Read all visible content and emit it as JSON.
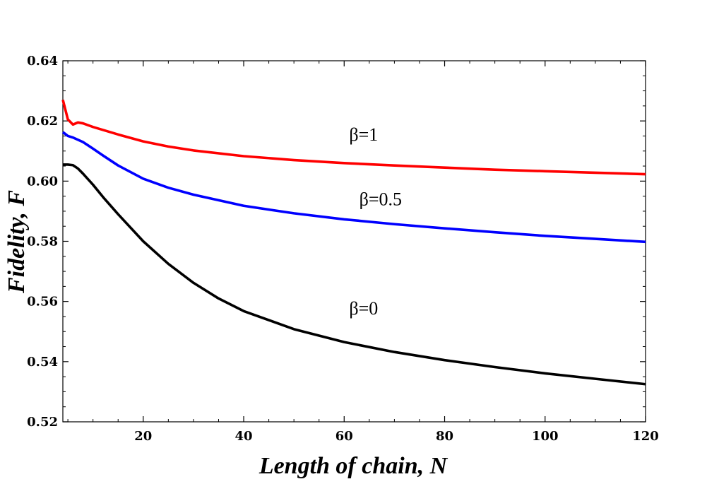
{
  "chart_data": {
    "type": "line",
    "title": "",
    "xlabel": "Length of chain, N",
    "ylabel": "Fidelity, F",
    "xlim": [
      4,
      120
    ],
    "ylim": [
      0.52,
      0.64
    ],
    "x_ticks": [
      20,
      40,
      60,
      80,
      100,
      120
    ],
    "y_ticks": [
      0.52,
      0.54,
      0.56,
      0.58,
      0.6,
      0.62,
      0.64
    ],
    "y_tick_labels": [
      "0.52",
      "0.54",
      "0.56",
      "0.58",
      "0.60",
      "0.62",
      "0.64"
    ],
    "grid": false,
    "series": [
      {
        "name": "β=1",
        "color": "#ff0000",
        "x": [
          4,
          5,
          6,
          7,
          8,
          10,
          12,
          15,
          20,
          25,
          30,
          40,
          50,
          60,
          70,
          80,
          90,
          100,
          110,
          120
        ],
        "y": [
          0.627,
          0.6205,
          0.6188,
          0.6195,
          0.6192,
          0.618,
          0.617,
          0.6155,
          0.6132,
          0.6115,
          0.6102,
          0.6083,
          0.607,
          0.606,
          0.6052,
          0.6045,
          0.6038,
          0.6033,
          0.6028,
          0.6023
        ]
      },
      {
        "name": "β=0.5",
        "color": "#0000ff",
        "x": [
          4,
          5,
          6,
          8,
          10,
          12,
          15,
          20,
          25,
          30,
          40,
          50,
          60,
          70,
          80,
          90,
          100,
          110,
          120
        ],
        "y": [
          0.6163,
          0.615,
          0.6145,
          0.613,
          0.6108,
          0.6085,
          0.6052,
          0.6008,
          0.5978,
          0.5955,
          0.5918,
          0.5893,
          0.5873,
          0.5857,
          0.5843,
          0.583,
          0.5818,
          0.5808,
          0.5798
        ]
      },
      {
        "name": "β=0",
        "color": "#000000",
        "x": [
          4,
          5,
          6,
          7,
          8,
          10,
          12,
          15,
          20,
          25,
          30,
          35,
          40,
          50,
          60,
          70,
          80,
          90,
          100,
          110,
          120
        ],
        "y": [
          0.6055,
          0.6055,
          0.6053,
          0.6042,
          0.6025,
          0.5988,
          0.5947,
          0.589,
          0.58,
          0.5725,
          0.5662,
          0.561,
          0.5568,
          0.5508,
          0.5465,
          0.5432,
          0.5405,
          0.5382,
          0.5361,
          0.5343,
          0.5325
        ]
      }
    ],
    "annotations": [
      {
        "text": "β=1",
        "x": 61,
        "y": 0.6135
      },
      {
        "text": "β=0.5",
        "x": 63,
        "y": 0.592
      },
      {
        "text": "β=0",
        "x": 61,
        "y": 0.5557
      }
    ]
  }
}
